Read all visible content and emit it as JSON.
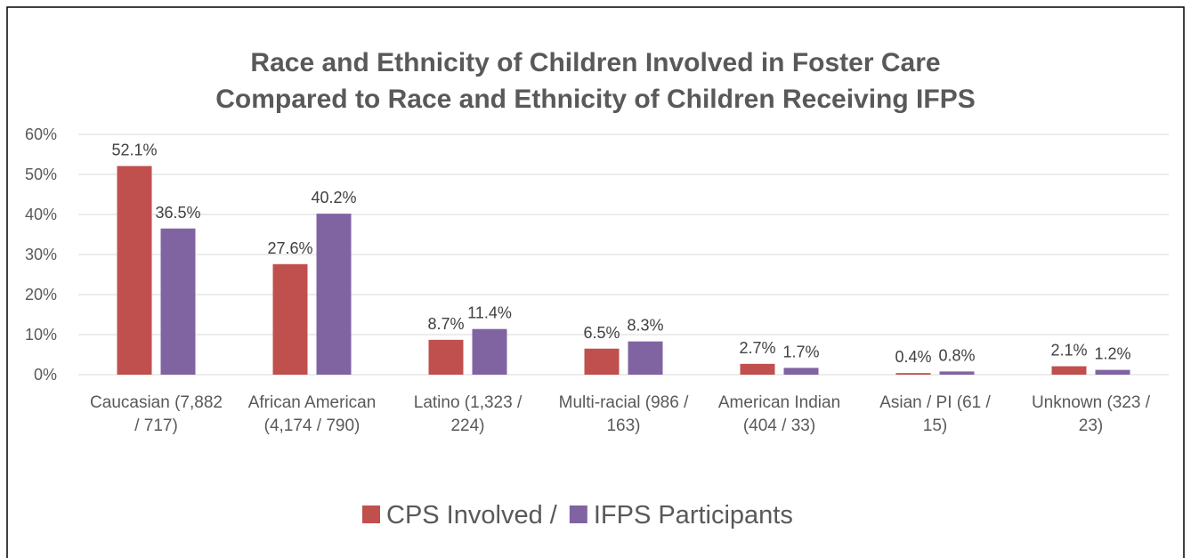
{
  "chart_data": {
    "type": "bar",
    "title": [
      "Race and Ethnicity of Children Involved in Foster Care",
      "Compared to Race and Ethnicity of Children Receiving IFPS"
    ],
    "categories": [
      "Caucasian (7,882 / 717)",
      "African American (4,174 / 790)",
      "Latino (1,323 / 224)",
      "Multi-racial (986 / 163)",
      "American Indian (404 / 33)",
      "Asian / PI (61 / 15)",
      "Unknown (323 / 23)"
    ],
    "series": [
      {
        "name": "CPS Involved /",
        "color": "#c0504d",
        "values": [
          52.1,
          27.6,
          8.7,
          6.5,
          2.7,
          0.4,
          2.1
        ],
        "value_labels": [
          "52.1%",
          "27.6%",
          "8.7%",
          "6.5%",
          "2.7%",
          "0.4%",
          "2.1%"
        ]
      },
      {
        "name": "IFPS Participants",
        "color": "#8064a2",
        "values": [
          36.5,
          40.2,
          11.4,
          8.3,
          1.7,
          0.8,
          1.2
        ],
        "value_labels": [
          "36.5%",
          "40.2%",
          "11.4%",
          "8.3%",
          "1.7%",
          "0.8%",
          "1.2%"
        ]
      }
    ],
    "ylim": [
      0,
      60
    ],
    "yticks": [
      {
        "value": 0,
        "label": "0%"
      },
      {
        "value": 10,
        "label": "10%"
      },
      {
        "value": 20,
        "label": "20%"
      },
      {
        "value": 30,
        "label": "30%"
      },
      {
        "value": 40,
        "label": "40%"
      },
      {
        "value": 50,
        "label": "50%"
      },
      {
        "value": 60,
        "label": "60%"
      }
    ],
    "grid": true,
    "legend": "bottom"
  }
}
